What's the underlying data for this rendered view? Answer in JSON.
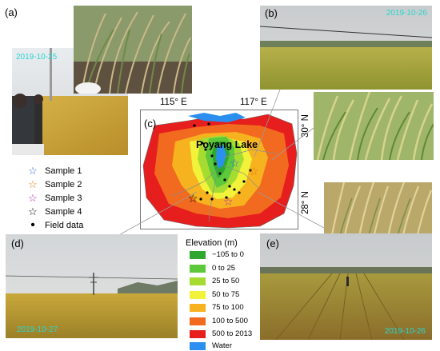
{
  "panels": {
    "a": {
      "label": "(a)",
      "date": "2019-10-25"
    },
    "b": {
      "label": "(b)",
      "date": "2019-10-26"
    },
    "c": {
      "label": "(c)",
      "lake_label": "Poyang Lake"
    },
    "d": {
      "label": "(d)",
      "date": "2019-10-27"
    },
    "e": {
      "label": "(e)",
      "date": "2019-10-26"
    }
  },
  "map": {
    "lon_labels": [
      "115° E",
      "117° E"
    ],
    "lat_labels": [
      "30° N",
      "28° N"
    ]
  },
  "legend": {
    "items": [
      {
        "label": "Sample 1",
        "symbol": "☆",
        "color": "#2f6fd6"
      },
      {
        "label": "Sample 2",
        "symbol": "☆",
        "color": "#e07a12"
      },
      {
        "label": "Sample 3",
        "symbol": "☆",
        "color": "#b31fb3"
      },
      {
        "label": "Sample 4",
        "symbol": "☆",
        "color": "#000000"
      },
      {
        "label": "Field data",
        "symbol": "•",
        "color": "#000000"
      }
    ]
  },
  "elevation_legend": {
    "title": "Elevation (m)",
    "classes": [
      {
        "label": "−105 to 0",
        "color": "#2ea82e"
      },
      {
        "label": "0 to 25",
        "color": "#5cc83a"
      },
      {
        "label": "25 to 50",
        "color": "#a6dc32"
      },
      {
        "label": "50 to 75",
        "color": "#f2f23a"
      },
      {
        "label": "75 to 100",
        "color": "#f7b21f"
      },
      {
        "label": "100 to 500",
        "color": "#f26a1f"
      },
      {
        "label": "500 to 2013",
        "color": "#e61e1e"
      },
      {
        "label": "Water",
        "color": "#2b8ff0"
      }
    ]
  }
}
